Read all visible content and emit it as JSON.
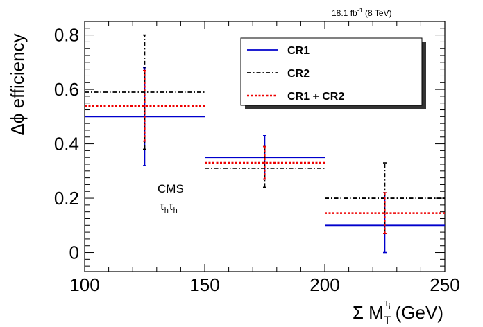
{
  "chart_data": {
    "type": "scatter",
    "header": {
      "lumi_value": "18.1 fb",
      "lumi_exp": "-1",
      "lumi_energy": " (8 TeV)"
    },
    "xlabel": {
      "prefix": "Σ M",
      "sub": "T",
      "sup": "τ",
      "supsub": "i",
      "suffix": " (GeV)"
    },
    "ylabel": "Δϕ efficiency",
    "xlim": [
      100,
      250
    ],
    "ylim": [
      -0.07,
      0.85
    ],
    "xticks": [
      100,
      150,
      200,
      250
    ],
    "xtick_labels": [
      "100",
      "150",
      "200",
      "250"
    ],
    "yticks": [
      0,
      0.2,
      0.4,
      0.6,
      0.8
    ],
    "ytick_labels": [
      "0",
      "0.2",
      "0.4",
      "0.6",
      "0.8"
    ],
    "grid": false,
    "legend_position": "top-right",
    "annotations": {
      "experiment": "CMS",
      "channel_main": "τ",
      "channel_sub": "h"
    },
    "series": [
      {
        "name": "CR1",
        "color": "#0000cc",
        "line_style": "solid",
        "points": [
          {
            "x": 125,
            "xlow": 100,
            "xhigh": 150,
            "y": 0.5,
            "ylow": 0.32,
            "yhigh": 0.68
          },
          {
            "x": 175,
            "xlow": 150,
            "xhigh": 200,
            "y": 0.35,
            "ylow": 0.27,
            "yhigh": 0.43
          },
          {
            "x": 225,
            "xlow": 200,
            "xhigh": 250,
            "y": 0.1,
            "ylow": 0.0,
            "yhigh": 0.22
          }
        ]
      },
      {
        "name": "CR2",
        "color": "#000000",
        "line_style": "dashdot",
        "points": [
          {
            "x": 125,
            "xlow": 100,
            "xhigh": 150,
            "y": 0.59,
            "ylow": 0.38,
            "yhigh": 0.8
          },
          {
            "x": 175,
            "xlow": 150,
            "xhigh": 200,
            "y": 0.31,
            "ylow": 0.24,
            "yhigh": 0.39
          },
          {
            "x": 225,
            "xlow": 200,
            "xhigh": 250,
            "y": 0.2,
            "ylow": 0.07,
            "yhigh": 0.33
          }
        ]
      },
      {
        "name": "CR1 + CR2",
        "color": "#ee0000",
        "line_style": "dotted",
        "points": [
          {
            "x": 125,
            "xlow": 100,
            "xhigh": 150,
            "y": 0.54,
            "ylow": 0.41,
            "yhigh": 0.67
          },
          {
            "x": 175,
            "xlow": 150,
            "xhigh": 200,
            "y": 0.33,
            "ylow": 0.27,
            "yhigh": 0.39
          },
          {
            "x": 225,
            "xlow": 200,
            "xhigh": 250,
            "y": 0.145,
            "ylow": 0.07,
            "yhigh": 0.22
          }
        ]
      }
    ]
  }
}
